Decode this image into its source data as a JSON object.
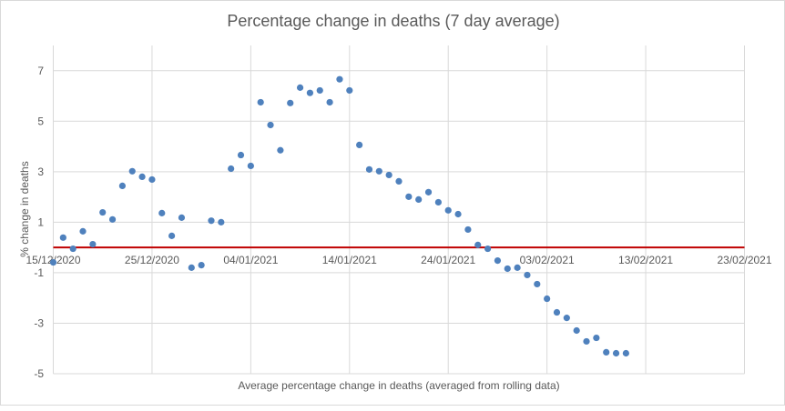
{
  "chart_data": {
    "type": "scatter",
    "title": "Percentage change in deaths (7 day average)",
    "xlabel": "Average percentage  change in deaths (averaged from rolling data)",
    "ylabel": "% change in deaths",
    "xlim": [
      "15/12/2020",
      "23/02/2021"
    ],
    "x_ticks": [
      "15/12/2020",
      "25/12/2020",
      "04/01/2021",
      "14/01/2021",
      "24/01/2021",
      "03/02/2021",
      "13/02/2021",
      "23/02/2021"
    ],
    "ylim": [
      -5,
      8
    ],
    "y_ticks": [
      -5,
      -3,
      -1,
      1,
      3,
      5,
      7
    ],
    "grid": true,
    "reference_line": {
      "y": 0,
      "color": "#c00000"
    },
    "marker_color": "#4f81bd",
    "points": [
      [
        "15/12/2020",
        -0.59
      ],
      [
        "16/12/2020",
        0.39
      ],
      [
        "17/12/2020",
        -0.05
      ],
      [
        "18/12/2020",
        0.64
      ],
      [
        "19/12/2020",
        0.13
      ],
      [
        "20/12/2020",
        1.39
      ],
      [
        "21/12/2020",
        1.11
      ],
      [
        "22/12/2020",
        2.44
      ],
      [
        "23/12/2020",
        3.02
      ],
      [
        "24/12/2020",
        2.8
      ],
      [
        "25/12/2020",
        2.69
      ],
      [
        "26/12/2020",
        1.36
      ],
      [
        "27/12/2020",
        0.46
      ],
      [
        "28/12/2020",
        1.18
      ],
      [
        "29/12/2020",
        -0.8
      ],
      [
        "30/12/2020",
        -0.7
      ],
      [
        "31/12/2020",
        1.06
      ],
      [
        "01/01/2021",
        1.0
      ],
      [
        "02/01/2021",
        3.12
      ],
      [
        "03/01/2021",
        3.66
      ],
      [
        "04/01/2021",
        3.23
      ],
      [
        "05/01/2021",
        5.75
      ],
      [
        "06/01/2021",
        4.85
      ],
      [
        "07/01/2021",
        3.85
      ],
      [
        "08/01/2021",
        5.72
      ],
      [
        "09/01/2021",
        6.33
      ],
      [
        "10/01/2021",
        6.12
      ],
      [
        "11/01/2021",
        6.22
      ],
      [
        "12/01/2021",
        5.75
      ],
      [
        "13/01/2021",
        6.66
      ],
      [
        "14/01/2021",
        6.22
      ],
      [
        "15/01/2021",
        4.06
      ],
      [
        "16/01/2021",
        3.09
      ],
      [
        "17/01/2021",
        3.02
      ],
      [
        "18/01/2021",
        2.87
      ],
      [
        "19/01/2021",
        2.62
      ],
      [
        "20/01/2021",
        2.01
      ],
      [
        "21/01/2021",
        1.9
      ],
      [
        "22/01/2021",
        2.19
      ],
      [
        "23/01/2021",
        1.79
      ],
      [
        "24/01/2021",
        1.47
      ],
      [
        "25/01/2021",
        1.32
      ],
      [
        "26/01/2021",
        0.71
      ],
      [
        "27/01/2021",
        0.1
      ],
      [
        "28/01/2021",
        -0.05
      ],
      [
        "29/01/2021",
        -0.52
      ],
      [
        "30/01/2021",
        -0.84
      ],
      [
        "31/01/2021",
        -0.8
      ],
      [
        "01/02/2021",
        -1.09
      ],
      [
        "02/02/2021",
        -1.45
      ],
      [
        "03/02/2021",
        -2.03
      ],
      [
        "04/02/2021",
        -2.57
      ],
      [
        "05/02/2021",
        -2.79
      ],
      [
        "06/02/2021",
        -3.29
      ],
      [
        "07/02/2021",
        -3.72
      ],
      [
        "08/02/2021",
        -3.58
      ],
      [
        "09/02/2021",
        -4.15
      ],
      [
        "10/02/2021",
        -4.19
      ],
      [
        "11/02/2021",
        -4.19
      ]
    ]
  }
}
